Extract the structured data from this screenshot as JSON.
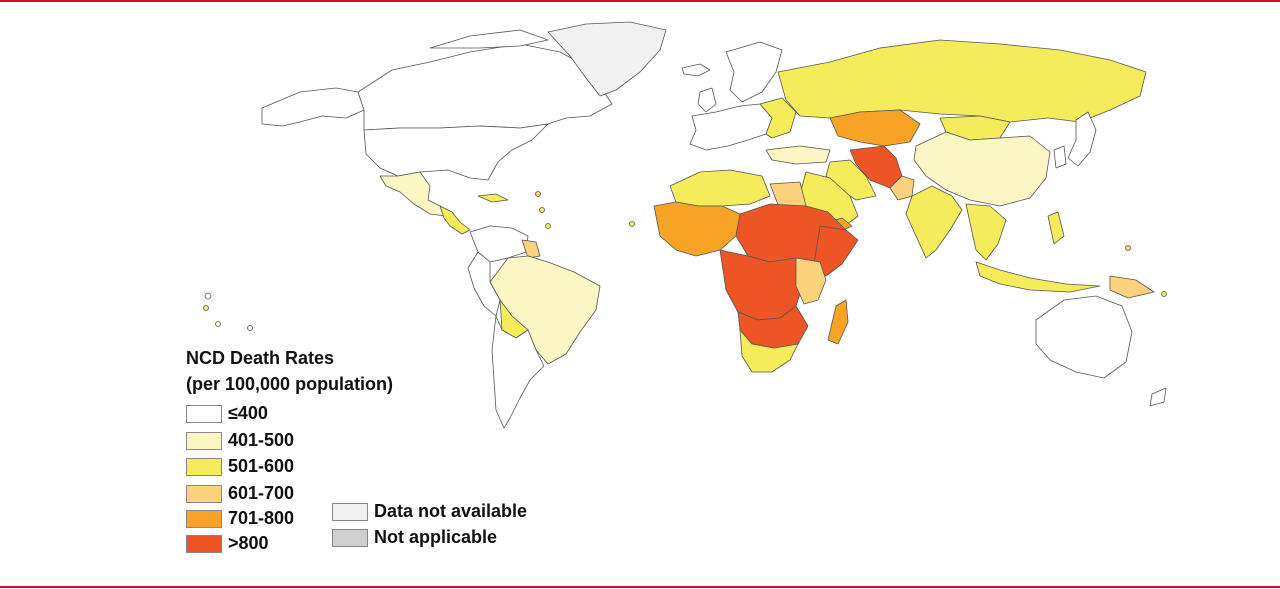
{
  "legend": {
    "title_line1": "NCD Death Rates",
    "title_line2": "(per 100,000 population)",
    "classes": [
      {
        "label": "≤400",
        "color": "#ffffff"
      },
      {
        "label": "401-500",
        "color": "#fbf6c3"
      },
      {
        "label": "501-600",
        "color": "#f4ec5a"
      },
      {
        "label": "601-700",
        "color": "#fcd27c"
      },
      {
        "label": "701-800",
        "color": "#f7a426"
      },
      {
        "label": ">800",
        "color": "#ee5526"
      }
    ],
    "extra": [
      {
        "label": "Data not available",
        "color": "#f1f1f1"
      },
      {
        "label": "Not applicable",
        "color": "#cfcfcf"
      }
    ]
  },
  "colors": {
    "frame_rule": "#c8102e",
    "border": "#555555"
  }
}
